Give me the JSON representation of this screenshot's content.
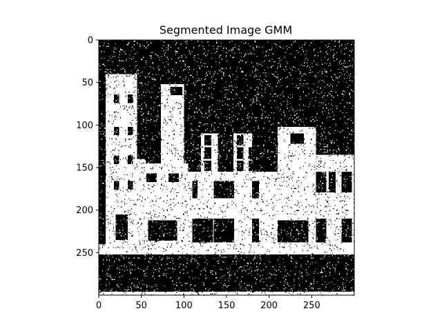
{
  "chart_data": {
    "type": "heatmap",
    "title": "Segmented Image GMM",
    "colormap": "binary-black-white",
    "foreground_color": "#ffffff",
    "background_color": "#000000",
    "image_width": 300,
    "image_height": 300,
    "xlim": [
      0,
      300
    ],
    "ylim": [
      300,
      0
    ],
    "x_ticks": [
      0,
      50,
      100,
      150,
      200,
      250
    ],
    "y_ticks": [
      0,
      50,
      100,
      150,
      200,
      250
    ],
    "noise": "salt-and-pepper",
    "regions_foreground": [
      {
        "label": "tower-left",
        "x": [
          8,
          45
        ],
        "y": [
          40,
          245
        ]
      },
      {
        "label": "tower-left-wing",
        "x": [
          45,
          55
        ],
        "y": [
          140,
          245
        ]
      },
      {
        "label": "tower-center",
        "x": [
          73,
          100
        ],
        "y": [
          52,
          245
        ]
      },
      {
        "label": "center-lowblock",
        "x": [
          48,
          105
        ],
        "y": [
          145,
          245
        ]
      },
      {
        "label": "middle-house-left",
        "x": [
          120,
          140
        ],
        "y": [
          110,
          245
        ]
      },
      {
        "label": "middle-house-right",
        "x": [
          158,
          180
        ],
        "y": [
          110,
          245
        ]
      },
      {
        "label": "middle-block",
        "x": [
          105,
          210
        ],
        "y": [
          155,
          245
        ]
      },
      {
        "label": "right-building",
        "x": [
          210,
          255
        ],
        "y": [
          102,
          245
        ]
      },
      {
        "label": "far-right-house",
        "x": [
          255,
          300
        ],
        "y": [
          135,
          245
        ]
      },
      {
        "label": "ground-strip",
        "x": [
          0,
          300
        ],
        "y": [
          240,
          252
        ]
      },
      {
        "label": "bottom-line",
        "x": [
          0,
          300
        ],
        "y": [
          296,
          300
        ]
      }
    ]
  }
}
